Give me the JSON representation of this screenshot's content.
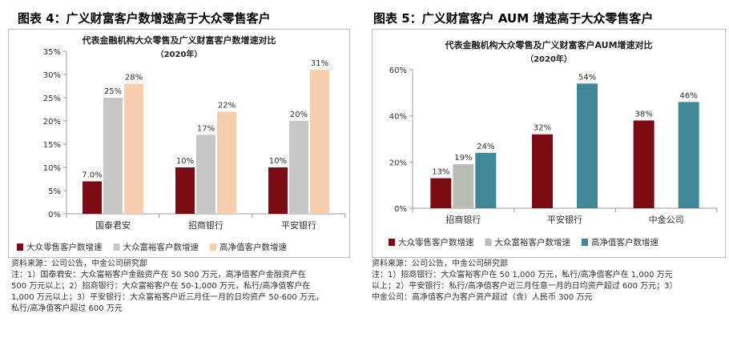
{
  "figures": [
    {
      "fig_title": "图表 4：广义财富客户数增速高于大众零售客户",
      "source": "资料来源：公司公告，中金公司研究部",
      "notes": [
        "注：1）国泰君安：大众富裕客户金融资产在 50 500 万元，高净值客户金融资产在",
        "500 万元以上；2）招商银行：大众富裕客户在 50-1,000 万元，私行/高净值客户在",
        "1,000 万元以上；3）平安银行：大众富裕客户近三月任一月的日均资产 50-600 万元，",
        "私行/高净值客户超过 600 万元"
      ],
      "chart_data": {
        "type": "bar",
        "title": "代表金融机构大众零售及广义财富客户数增速对比",
        "subtitle": "（2020年）",
        "categories": [
          "国泰君安",
          "招商银行",
          "平安银行"
        ],
        "series": [
          {
            "name": "大众零售客户数增速",
            "values": [
              7.0,
              10,
              10
            ],
            "labels": [
              "7.0%",
              "10%",
              "10%"
            ],
            "color": "#7b0c13"
          },
          {
            "name": "大众富裕客户数增速",
            "values": [
              25,
              17,
              20
            ],
            "labels": [
              "25%",
              "17%",
              "20%"
            ],
            "color": "#c7c7c7"
          },
          {
            "name": "高净值客户数增速",
            "values": [
              28,
              22,
              31
            ],
            "labels": [
              "28%",
              "22%",
              "31%"
            ],
            "color": "#f7ceae"
          }
        ],
        "ylim": [
          0,
          35
        ],
        "yticks": [
          0,
          5,
          10,
          15,
          20,
          25,
          30,
          35
        ],
        "ytick_labels": [
          "0%",
          "5%",
          "10%",
          "15%",
          "20%",
          "25%",
          "30%",
          "35%"
        ],
        "grid": false,
        "legend": "bottom"
      }
    },
    {
      "fig_title": "图表 5：广义财富客户 AUM 增速高于大众零售客户",
      "source": "资料来源：公司公告，中金公司研究部",
      "notes": [
        "注：1）招商银行：大众富裕客户在 50 1,000 万元，私行/高净值客户在 1,000 万元",
        "以上；2）平安银行：私行/高净值客户近三月任意一月的日均资产超过 600 万元；3）",
        "中金公司：高净值客户为客户资产超过（含）人民币 300 万元"
      ],
      "chart_data": {
        "type": "bar",
        "title": "代表金融机构大众零售及广义财富客户AUM增速对比",
        "subtitle": "（2020年）",
        "categories": [
          "招商银行",
          "平安银行",
          "中金公司"
        ],
        "series": [
          {
            "name": "大众零售客户数增速",
            "values": [
              13,
              32,
              38
            ],
            "labels": [
              "13%",
              "32%",
              "38%"
            ],
            "color": "#7b0c13"
          },
          {
            "name": "大众富裕客户数增速",
            "values": [
              19,
              null,
              null
            ],
            "labels": [
              "19%",
              "",
              ""
            ],
            "color": "#b9bdb5"
          },
          {
            "name": "高净值客户数增速",
            "values": [
              24,
              54,
              46
            ],
            "labels": [
              "24%",
              "54%",
              "46%"
            ],
            "color": "#3f8797"
          }
        ],
        "ylim": [
          0,
          60
        ],
        "yticks": [
          0,
          20,
          40,
          60
        ],
        "ytick_labels": [
          "0%",
          "20%",
          "40%",
          "60%"
        ],
        "grid": false,
        "legend": "bottom"
      }
    }
  ]
}
